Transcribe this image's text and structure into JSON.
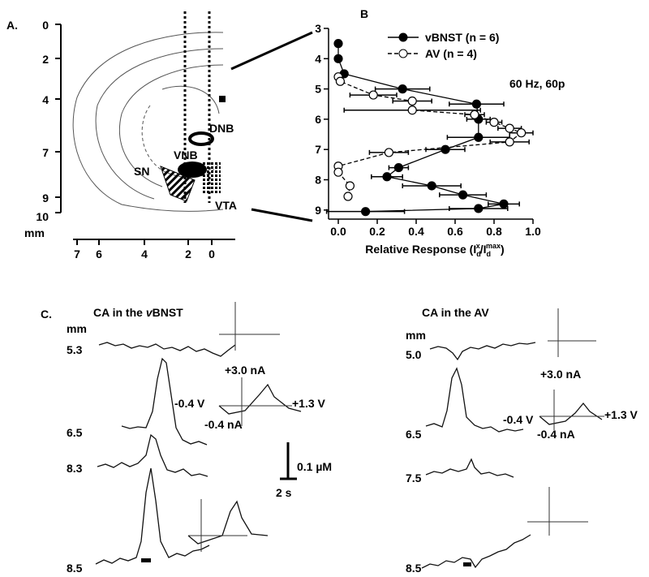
{
  "panel_a": {
    "label": "A.",
    "depth_ticks": [
      "0",
      "2",
      "4",
      "7",
      "9",
      "10"
    ],
    "depth_unit": "mm",
    "lateral_ticks": [
      "7",
      "6",
      "4",
      "2",
      "0"
    ],
    "regions": [
      "DNB",
      "VNB",
      "SN",
      "VTA"
    ]
  },
  "chart_data": {
    "type": "line",
    "label": "B",
    "annotation": "60 Hz, 60p",
    "xlabel_parts": [
      "Relative Response (I",
      "d",
      "x",
      "/I",
      "d",
      "max",
      ")"
    ],
    "xlim": [
      -0.05,
      1.0
    ],
    "xticks": [
      {
        "value": 0,
        "label": "0.0"
      },
      0.2,
      0.4,
      0.6,
      0.8,
      {
        "value": 1,
        "label": "1.0"
      }
    ],
    "ylim": [
      3,
      9.3
    ],
    "yticks": [
      3,
      4,
      5,
      6,
      7,
      8,
      9
    ],
    "y_inverted": true,
    "legend": "top-right",
    "series": [
      {
        "name": "vBNST (n = 6)",
        "color": "#000000",
        "marker": "filled",
        "dash": false,
        "y": [
          3.5,
          4.0,
          4.5,
          5.0,
          5.5,
          6.0,
          6.6,
          7.0,
          7.6,
          7.9,
          8.2,
          8.5,
          8.8,
          8.95,
          9.05
        ],
        "x": [
          0.0,
          0.0,
          0.03,
          0.33,
          0.71,
          0.72,
          0.72,
          0.55,
          0.31,
          0.25,
          0.48,
          0.64,
          0.85,
          0.72,
          0.14
        ],
        "xerr": [
          0,
          0,
          0,
          0.14,
          0.14,
          0.06,
          0.16,
          0.1,
          0.05,
          0.08,
          0.15,
          0.12,
          0.08,
          0.15,
          0.2
        ]
      },
      {
        "name": "AV (n = 4)",
        "color": "#000000",
        "marker": "open",
        "dash": true,
        "y": [
          4.6,
          4.75,
          5.2,
          5.4,
          5.7,
          5.85,
          6.1,
          6.3,
          6.45,
          6.75,
          7.1,
          7.55,
          7.75,
          8.2,
          8.55
        ],
        "x": [
          0.0,
          0.01,
          0.18,
          0.38,
          0.38,
          0.7,
          0.8,
          0.88,
          0.94,
          0.88,
          0.26,
          0.0,
          0.0,
          0.06,
          0.05
        ],
        "xerr": [
          0,
          0,
          0.12,
          0.1,
          0.35,
          0.05,
          0.04,
          0.06,
          0.06,
          0.1,
          0.1,
          0,
          0,
          0,
          0
        ]
      }
    ]
  },
  "panel_c": {
    "label": "C.",
    "left_title": [
      "CA in the ",
      "v",
      "BNST"
    ],
    "right_title": "CA in the AV",
    "depth_unit": "mm",
    "left_depths": [
      "5.3",
      "6.5",
      "8.3",
      "8.5"
    ],
    "right_depths": [
      "5.0",
      "6.5",
      "7.5",
      "8.5"
    ],
    "cv_labels": [
      "+3.0 nA",
      "-0.4 V",
      "+1.3 V",
      "-0.4 nA"
    ],
    "scale_conc": "0.1 µM",
    "scale_time": "2 s"
  }
}
